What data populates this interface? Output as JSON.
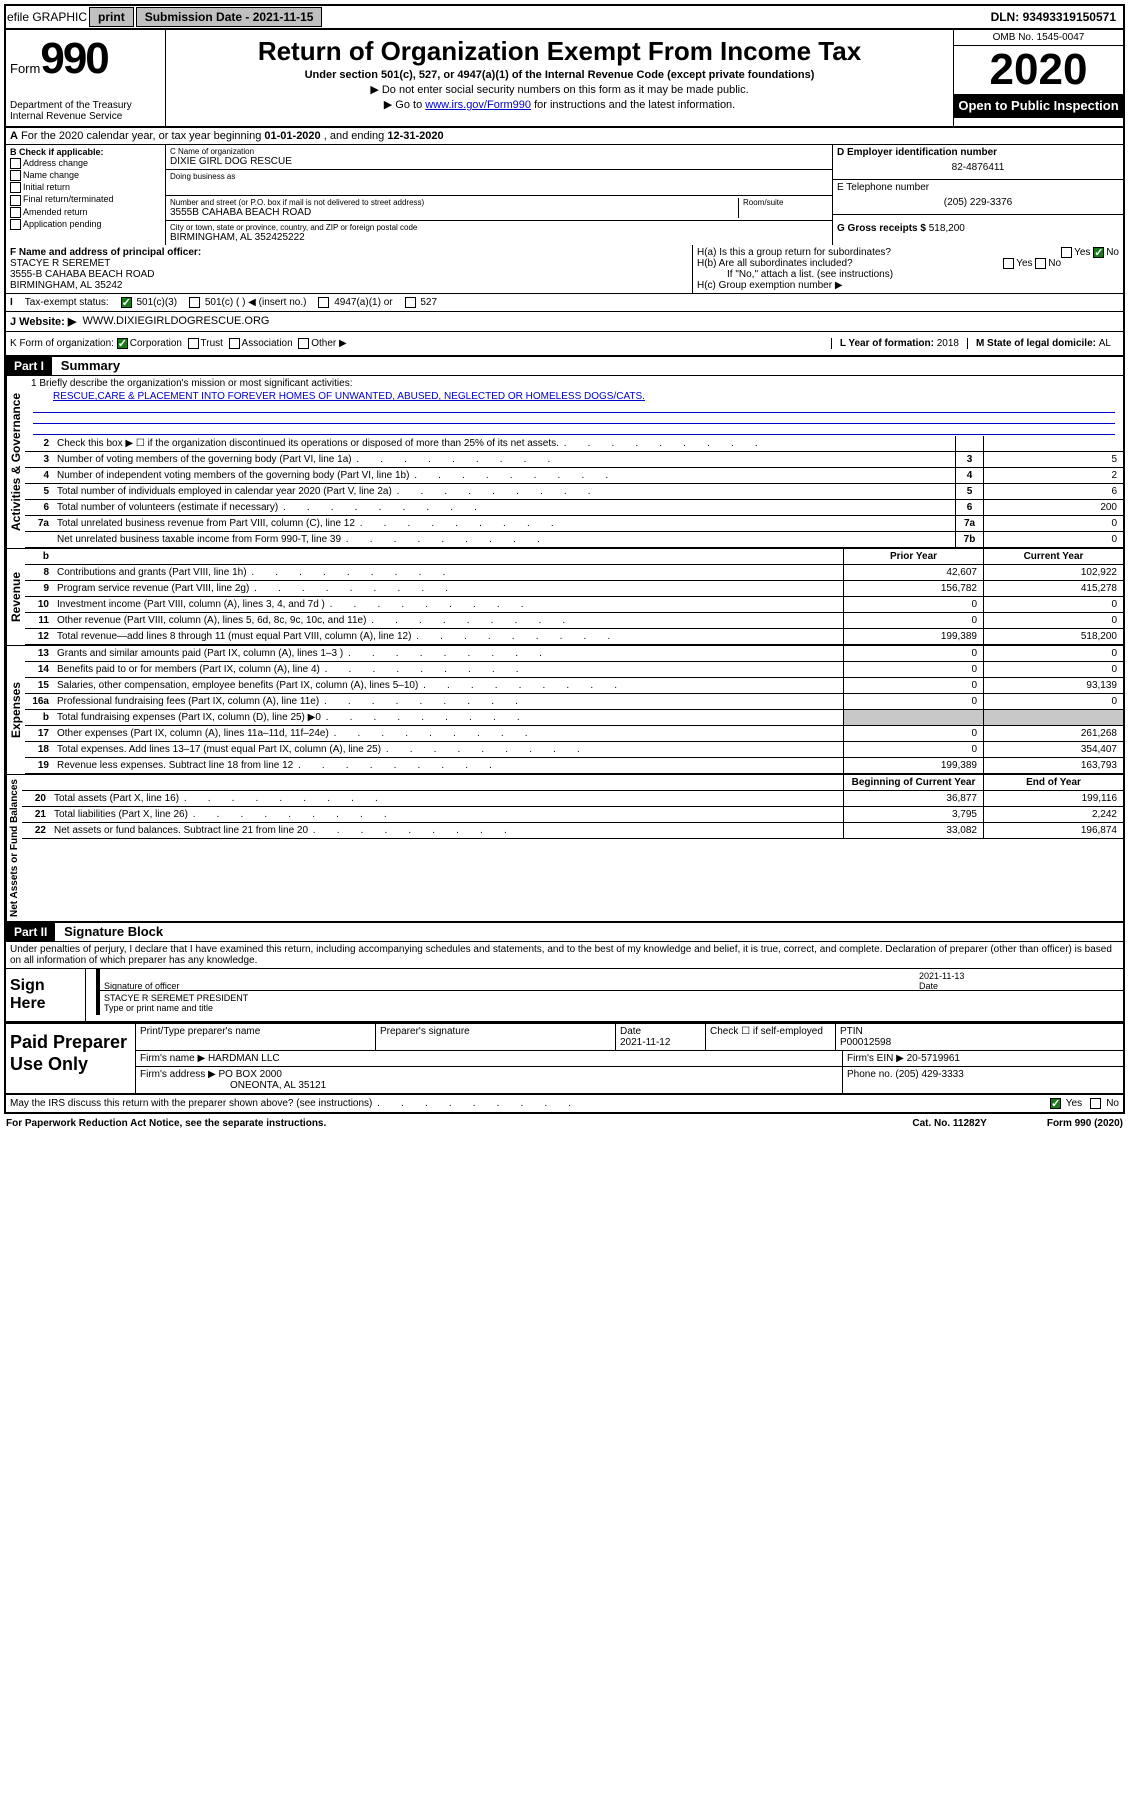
{
  "topbar": {
    "efile": "efile GRAPHIC",
    "print": "print",
    "submission_label": "Submission Date - ",
    "submission_date": "2021-11-15",
    "dln_label": "DLN: ",
    "dln": "93493319150571"
  },
  "header": {
    "form_word": "Form",
    "form_num": "990",
    "dept": "Department of the Treasury",
    "irs": "Internal Revenue Service",
    "title": "Return of Organization Exempt From Income Tax",
    "subtitle": "Under section 501(c), 527, or 4947(a)(1) of the Internal Revenue Code (except private foundations)",
    "note1": "▶ Do not enter social security numbers on this form as it may be made public.",
    "note2_pre": "▶ Go to ",
    "note2_link": "www.irs.gov/Form990",
    "note2_post": " for instructions and the latest information.",
    "omb": "OMB No. 1545-0047",
    "year": "2020",
    "open": "Open to Public Inspection"
  },
  "A": {
    "text_pre": "For the 2020 calendar year, or tax year beginning ",
    "begin": "01-01-2020",
    "text_mid": " , and ending ",
    "end": "12-31-2020"
  },
  "B": {
    "label": "B Check if applicable:",
    "items": [
      "Address change",
      "Name change",
      "Initial return",
      "Final return/terminated",
      "Amended return",
      "Application pending"
    ]
  },
  "C": {
    "name_lbl": "C Name of organization",
    "name": "DIXIE GIRL DOG RESCUE",
    "dba_lbl": "Doing business as",
    "street_lbl": "Number and street (or P.O. box if mail is not delivered to street address)",
    "room_lbl": "Room/suite",
    "street": "3555B CAHABA BEACH ROAD",
    "city_lbl": "City or town, state or province, country, and ZIP or foreign postal code",
    "city": "BIRMINGHAM, AL  352425222"
  },
  "D": {
    "lbl": "D Employer identification number",
    "val": "82-4876411"
  },
  "E": {
    "lbl": "E Telephone number",
    "val": "(205) 229-3376"
  },
  "G": {
    "lbl": "G Gross receipts $ ",
    "val": "518,200"
  },
  "F": {
    "lbl": "F  Name and address of principal officer:",
    "name": "STACYE R SEREMET",
    "addr1": "3555-B CAHABA BEACH ROAD",
    "addr2": "BIRMINGHAM, AL  35242"
  },
  "H": {
    "a": "H(a)  Is this a group return for subordinates?",
    "b": "H(b)  Are all subordinates included?",
    "b_note": "If \"No,\" attach a list. (see instructions)",
    "c": "H(c)  Group exemption number ▶",
    "yes": "Yes",
    "no": "No"
  },
  "I": {
    "lbl": "Tax-exempt status:",
    "opt1": "501(c)(3)",
    "opt2": "501(c) (  ) ◀ (insert no.)",
    "opt3": "4947(a)(1) or",
    "opt4": "527"
  },
  "J": {
    "lbl": "J   Website: ▶",
    "val": "WWW.DIXIEGIRLDOGRESCUE.ORG"
  },
  "K": {
    "lbl": "K Form of organization:",
    "corp": "Corporation",
    "trust": "Trust",
    "assoc": "Association",
    "other": "Other ▶"
  },
  "L": {
    "lbl": "L Year of formation: ",
    "val": "2018"
  },
  "M": {
    "lbl": "M State of legal domicile: ",
    "val": "AL"
  },
  "part1": {
    "tag": "Part I",
    "title": "Summary"
  },
  "mission": {
    "lbl": "1   Briefly describe the organization's mission or most significant activities:",
    "text": "RESCUE,CARE & PLACEMENT INTO FOREVER HOMES OF UNWANTED, ABUSED, NEGLECTED OR HOMELESS DOGS/CATS."
  },
  "lines_gov": [
    {
      "n": "2",
      "t": "Check this box ▶ ☐  if the organization discontinued its operations or disposed of more than 25% of its net assets.",
      "b": "",
      "v": ""
    },
    {
      "n": "3",
      "t": "Number of voting members of the governing body (Part VI, line 1a)",
      "b": "3",
      "v": "5"
    },
    {
      "n": "4",
      "t": "Number of independent voting members of the governing body (Part VI, line 1b)",
      "b": "4",
      "v": "2"
    },
    {
      "n": "5",
      "t": "Total number of individuals employed in calendar year 2020 (Part V, line 2a)",
      "b": "5",
      "v": "6"
    },
    {
      "n": "6",
      "t": "Total number of volunteers (estimate if necessary)",
      "b": "6",
      "v": "200"
    },
    {
      "n": "7a",
      "t": "Total unrelated business revenue from Part VIII, column (C), line 12",
      "b": "7a",
      "v": "0"
    },
    {
      "n": "",
      "t": "Net unrelated business taxable income from Form 990-T, line 39",
      "b": "7b",
      "v": "0"
    }
  ],
  "col_hdr": {
    "b": "b",
    "prior": "Prior Year",
    "current": "Current Year"
  },
  "lines_rev": [
    {
      "n": "8",
      "t": "Contributions and grants (Part VIII, line 1h)",
      "p": "42,607",
      "c": "102,922"
    },
    {
      "n": "9",
      "t": "Program service revenue (Part VIII, line 2g)",
      "p": "156,782",
      "c": "415,278"
    },
    {
      "n": "10",
      "t": "Investment income (Part VIII, column (A), lines 3, 4, and 7d )",
      "p": "0",
      "c": "0"
    },
    {
      "n": "11",
      "t": "Other revenue (Part VIII, column (A), lines 5, 6d, 8c, 9c, 10c, and 11e)",
      "p": "0",
      "c": "0"
    },
    {
      "n": "12",
      "t": "Total revenue—add lines 8 through 11 (must equal Part VIII, column (A), line 12)",
      "p": "199,389",
      "c": "518,200"
    }
  ],
  "lines_exp": [
    {
      "n": "13",
      "t": "Grants and similar amounts paid (Part IX, column (A), lines 1–3 )",
      "p": "0",
      "c": "0"
    },
    {
      "n": "14",
      "t": "Benefits paid to or for members (Part IX, column (A), line 4)",
      "p": "0",
      "c": "0"
    },
    {
      "n": "15",
      "t": "Salaries, other compensation, employee benefits (Part IX, column (A), lines 5–10)",
      "p": "0",
      "c": "93,139"
    },
    {
      "n": "16a",
      "t": "Professional fundraising fees (Part IX, column (A), line 11e)",
      "p": "0",
      "c": "0"
    },
    {
      "n": "b",
      "t": "Total fundraising expenses (Part IX, column (D), line 25) ▶0",
      "p": "",
      "c": "",
      "shaded": true
    },
    {
      "n": "17",
      "t": "Other expenses (Part IX, column (A), lines 11a–11d, 11f–24e)",
      "p": "0",
      "c": "261,268"
    },
    {
      "n": "18",
      "t": "Total expenses. Add lines 13–17 (must equal Part IX, column (A), line 25)",
      "p": "0",
      "c": "354,407"
    },
    {
      "n": "19",
      "t": "Revenue less expenses. Subtract line 18 from line 12",
      "p": "199,389",
      "c": "163,793"
    }
  ],
  "col_hdr2": {
    "begin": "Beginning of Current Year",
    "end": "End of Year"
  },
  "lines_net": [
    {
      "n": "20",
      "t": "Total assets (Part X, line 16)",
      "p": "36,877",
      "c": "199,116"
    },
    {
      "n": "21",
      "t": "Total liabilities (Part X, line 26)",
      "p": "3,795",
      "c": "2,242"
    },
    {
      "n": "22",
      "t": "Net assets or fund balances. Subtract line 21 from line 20",
      "p": "33,082",
      "c": "196,874"
    }
  ],
  "vlabels": {
    "gov": "Activities & Governance",
    "rev": "Revenue",
    "exp": "Expenses",
    "net": "Net Assets or Fund Balances"
  },
  "part2": {
    "tag": "Part II",
    "title": "Signature Block"
  },
  "perjury": "Under penalties of perjury, I declare that I have examined this return, including accompanying schedules and statements, and to the best of my knowledge and belief, it is true, correct, and complete. Declaration of preparer (other than officer) is based on all information of which preparer has any knowledge.",
  "sign": {
    "here": "Sign Here",
    "sig_lbl": "Signature of officer",
    "date_lbl": "Date",
    "date": "2021-11-13",
    "name": "STACYE R SEREMET PRESIDENT",
    "type_lbl": "Type or print name and title"
  },
  "prep": {
    "here": "Paid Preparer Use Only",
    "col_name": "Print/Type preparer's name",
    "col_sig": "Preparer's signature",
    "col_date": "Date",
    "date": "2021-11-12",
    "check_lbl": "Check ☐ if self-employed",
    "ptin_lbl": "PTIN",
    "ptin": "P00012598",
    "firm_name_lbl": "Firm's name    ▶",
    "firm_name": "HARDMAN LLC",
    "firm_ein_lbl": "Firm's EIN ▶",
    "firm_ein": "20-5719961",
    "firm_addr_lbl": "Firm's address ▶",
    "firm_addr1": "PO BOX 2000",
    "firm_addr2": "ONEONTA, AL  35121",
    "phone_lbl": "Phone no. ",
    "phone": "(205) 429-3333"
  },
  "discuss": {
    "q": "May the IRS discuss this return with the preparer shown above? (see instructions)",
    "yes": "Yes",
    "no": "No"
  },
  "footer": {
    "left": "For Paperwork Reduction Act Notice, see the separate instructions.",
    "mid": "Cat. No. 11282Y",
    "right": "Form 990 (2020)"
  }
}
